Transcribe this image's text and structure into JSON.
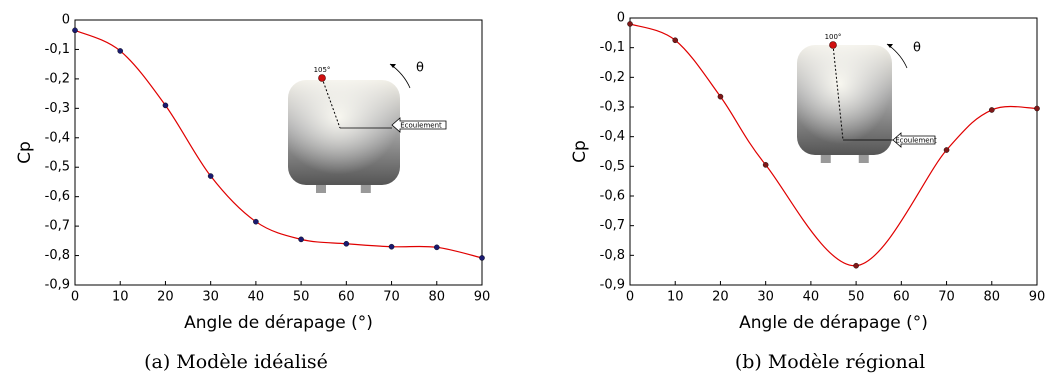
{
  "chart_data": [
    {
      "type": "line",
      "caption": "(a) Modèle idéalisé",
      "xlabel": "Angle de dérapage (°)",
      "ylabel": "Cp",
      "x": [
        0,
        10,
        20,
        30,
        40,
        50,
        60,
        70,
        80,
        90
      ],
      "series": [
        {
          "color": "#e00000",
          "marker_color": "#1a1a70",
          "values": [
            -0.035,
            -0.105,
            -0.29,
            -0.53,
            -0.685,
            -0.745,
            -0.76,
            -0.77,
            -0.772,
            -0.808
          ]
        }
      ],
      "xlim": [
        0,
        90
      ],
      "ylim": [
        -0.9,
        0
      ],
      "xticks": [
        0,
        10,
        20,
        30,
        40,
        50,
        60,
        70,
        80,
        90
      ],
      "yticks": [
        0,
        {
          "value": -0.1,
          "label": "-0,1"
        },
        {
          "value": -0.2,
          "label": "-0,2"
        },
        {
          "value": -0.3,
          "label": "-0,3"
        },
        {
          "value": -0.4,
          "label": "-0,4"
        },
        {
          "value": -0.5,
          "label": "-0,5"
        },
        {
          "value": -0.6,
          "label": "-0,6"
        },
        {
          "value": -0.7,
          "label": "-0,7"
        },
        {
          "value": -0.8,
          "label": "-0,8"
        },
        {
          "value": -0.9,
          "label": "-0,9"
        }
      ],
      "inset": {
        "angle_label": "105°",
        "theta": "θ",
        "flow_label": "Ecoulement"
      }
    },
    {
      "type": "line",
      "caption": "(b) Modèle régional",
      "xlabel": "Angle de dérapage (°)",
      "ylabel": "Cp",
      "x": [
        0,
        10,
        20,
        30,
        50,
        70,
        80,
        90
      ],
      "series": [
        {
          "color": "#e00000",
          "marker_color": "#801818",
          "values": [
            -0.02,
            -0.075,
            -0.265,
            -0.495,
            -0.835,
            -0.445,
            -0.31,
            -0.305
          ]
        }
      ],
      "xlim": [
        0,
        90
      ],
      "ylim": [
        -0.9,
        0
      ],
      "xticks": [
        0,
        10,
        20,
        30,
        40,
        50,
        60,
        70,
        80,
        90
      ],
      "yticks": [
        0,
        {
          "value": -0.1,
          "label": "-0,1"
        },
        {
          "value": -0.2,
          "label": "-0,2"
        },
        {
          "value": -0.3,
          "label": "-0,3"
        },
        {
          "value": -0.4,
          "label": "-0,4"
        },
        {
          "value": -0.5,
          "label": "-0,5"
        },
        {
          "value": -0.6,
          "label": "-0,6"
        },
        {
          "value": -0.7,
          "label": "-0,7"
        },
        {
          "value": -0.8,
          "label": "-0,8"
        },
        {
          "value": -0.9,
          "label": "-0,9"
        }
      ],
      "inset": {
        "angle_label": "100°",
        "theta": "θ",
        "flow_label": "Ecoulement"
      }
    }
  ]
}
